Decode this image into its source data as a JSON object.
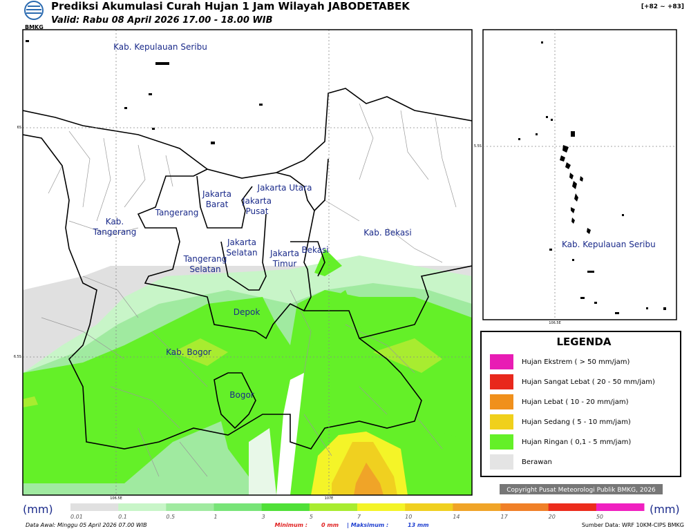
{
  "header": {
    "logo": "BMKG",
    "title": "Prediksi Akumulasi Curah Hujan 1 Jam Wilayah JABODETABEK",
    "subtitle": "Valid: Rabu 08 April 2026 17.00 - 18.00 WIB",
    "range": "[+82 ~ +83]"
  },
  "map": {
    "grid": {
      "lat1": "6S",
      "lat2": "6.5S",
      "lon1": "106.5E",
      "lon2": "107E"
    },
    "regions": [
      "Kab. Kepulauan Seribu",
      "Jakarta Utara",
      "Jakarta Barat",
      "Jakarta Pusat",
      "Tangerang",
      "Kab. Tangerang",
      "Kab. Bekasi",
      "Jakarta Selatan",
      "Jakarta Timur",
      "Bekasi",
      "Tangerang Selatan",
      "Depok",
      "Kab. Bogor",
      "Bogor"
    ]
  },
  "inset": {
    "region": "Kab. Kepulauan Seribu",
    "lat": "5.5S",
    "lon": "106.5E"
  },
  "legend": {
    "title": "LEGENDA",
    "items": [
      {
        "label": "Hujan Ekstrem ( > 50 mm/jam)",
        "color": "#e81cb4"
      },
      {
        "label": "Hujan Sangat Lebat ( 20 - 50 mm/jam)",
        "color": "#e8281c"
      },
      {
        "label": "Hujan Lebat ( 10 - 20 mm/jam)",
        "color": "#f0901c"
      },
      {
        "label": "Hujan Sedang ( 5 - 10 mm/jam)",
        "color": "#f0d01c"
      },
      {
        "label": "Hujan Ringan ( 0,1 - 5 mm/jam)",
        "color": "#64f028"
      },
      {
        "label": "Berawan",
        "color": "#e4e4e4"
      }
    ]
  },
  "copyright": "Copyright Pusat Meteorologi Publik BMKG, 2026",
  "colorbar": {
    "unit": "(mm)",
    "ticks": [
      0.01,
      0.1,
      0.5,
      1,
      3,
      5,
      7,
      10,
      14,
      17,
      20,
      50
    ],
    "colors": [
      "#e0e0e0",
      "#c8f5c8",
      "#a0eaa0",
      "#78e478",
      "#50e038",
      "#a8ec30",
      "#f4f428",
      "#f0d020",
      "#f0a428",
      "#f08028",
      "#ec2c1c",
      "#f020c0"
    ]
  },
  "footer": {
    "start": "Data Awal: Minggu 05 April 2026 07.00 WIB",
    "min_label": "Minimum :",
    "min_value": "0 mm",
    "max_label": "| Maksimum :",
    "max_value": "13 mm",
    "source": "Sumber Data: WRF 10KM-CIPS BMKG"
  }
}
